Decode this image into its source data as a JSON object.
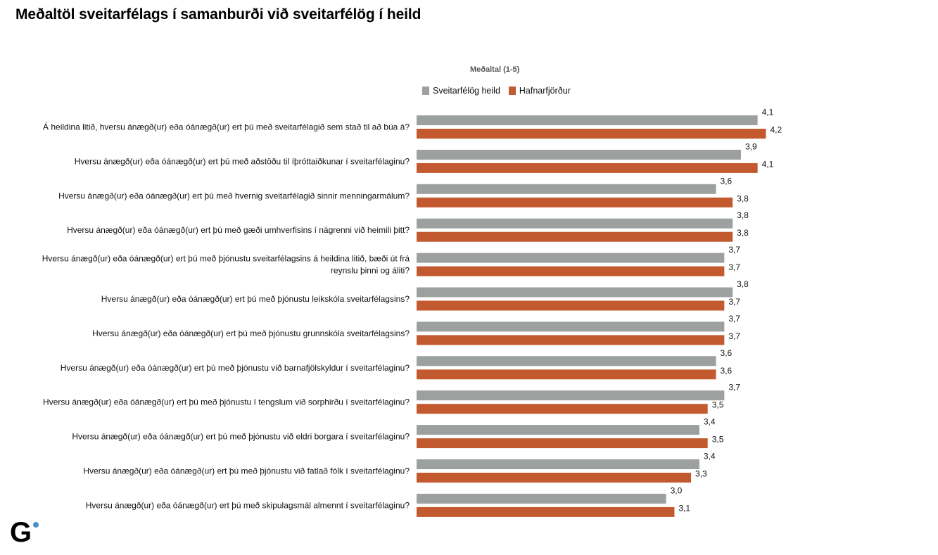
{
  "header": {
    "title": "Meðaltöl sveitarfélags í samanburði við sveitarfélög í heild"
  },
  "logo": {
    "letter": "G",
    "dot_color": "#4a90c8"
  },
  "colors": {
    "series1": "#9ca09f",
    "series2": "#c35a2f"
  },
  "chart_data": {
    "type": "bar",
    "orientation": "horizontal",
    "subtitle": "Meðaltal (1-5)",
    "legend_position": "top",
    "grid": false,
    "series": [
      {
        "name": "Sveitarfélög heild",
        "values": [
          4.1,
          3.9,
          3.6,
          3.8,
          3.7,
          3.8,
          3.7,
          3.6,
          3.7,
          3.4,
          3.4,
          3.0
        ],
        "labels": [
          "4,1",
          "3,9",
          "3,6",
          "3,8",
          "3,7",
          "3,8",
          "3,7",
          "3,6",
          "3,7",
          "3,4",
          "3,4",
          "3,0"
        ]
      },
      {
        "name": "Hafnarfjörður",
        "values": [
          4.2,
          4.1,
          3.8,
          3.8,
          3.7,
          3.7,
          3.7,
          3.6,
          3.5,
          3.5,
          3.3,
          3.1
        ],
        "labels": [
          "4,2",
          "4,1",
          "3,8",
          "3,8",
          "3,7",
          "3,7",
          "3,7",
          "3,6",
          "3,5",
          "3,5",
          "3,3",
          "3,1"
        ]
      }
    ],
    "categories": [
      [
        "Á heildina litið, hversu ánægð(ur) eða óánægð(ur) ert þú með sveitarfélagið sem stað til að búa á?"
      ],
      [
        "Hversu ánægð(ur) eða óánægð(ur) ert þú með aðstöðu til íþróttaiðkunar í sveitarfélaginu?"
      ],
      [
        "Hversu ánægð(ur) eða óánægð(ur) ert þú með hvernig sveitarfélagið sinnir menningarmálum?"
      ],
      [
        "Hversu ánægð(ur) eða óánægð(ur) ert þú með gæði umhverfisins í nágrenni við heimili þitt?"
      ],
      [
        "Hversu ánægð(ur) eða óánægð(ur) ert þú með þjónustu sveitarfélagsins á heildina litið, bæði út frá",
        "reynslu þinni og áliti?"
      ],
      [
        "Hversu ánægð(ur) eða óánægð(ur) ert þú með þjónustu leikskóla sveitarfélagsins?"
      ],
      [
        "Hversu ánægð(ur) eða óánægð(ur) ert þú með þjónustu grunnskóla sveitarfélagsins?"
      ],
      [
        "Hversu ánægð(ur) eða óánægð(ur) ert þú með þjónustu við barnafjölskyldur í sveitarfélaginu?"
      ],
      [
        "Hversu ánægð(ur) eða óánægð(ur) ert þú með þjónustu í tengslum við sorphirðu í sveitarfélaginu?"
      ],
      [
        "Hversu ánægð(ur) eða óánægð(ur) ert þú með þjónustu við eldri borgara í sveitarfélaginu?"
      ],
      [
        "Hversu ánægð(ur) eða óánægð(ur) ert þú með þjónustu við fatlað fólk í sveitarfélaginu?"
      ],
      [
        "Hversu ánægð(ur) eða óánægð(ur) ert þú með skipulagsmál almennt í sveitarfélaginu?"
      ]
    ]
  }
}
